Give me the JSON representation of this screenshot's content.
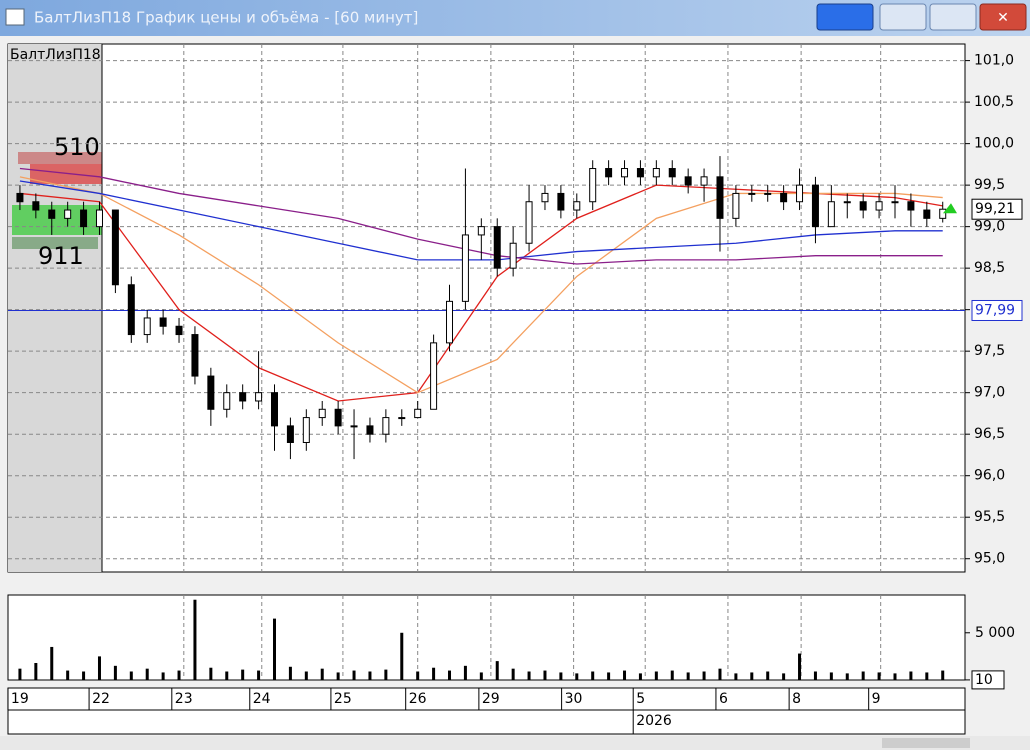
{
  "window_title": "БалтЛизП18 График цены и объёма - [60 минут]",
  "chart_data": {
    "type": "candlestick",
    "legend_label": "БалтЛизП18",
    "profile": {
      "top_label": "510",
      "bottom_label": "911"
    },
    "x": [
      0,
      1,
      2,
      3,
      4,
      5,
      6,
      7,
      8,
      9,
      10,
      11,
      12,
      13,
      14,
      15,
      16,
      17,
      18,
      19,
      20,
      21,
      22,
      23,
      24,
      25,
      26,
      27,
      28,
      29,
      30,
      31,
      32,
      33,
      34,
      35,
      36,
      37,
      38,
      39,
      40,
      41,
      42,
      43,
      44,
      45,
      46,
      47,
      48,
      49,
      50,
      51,
      52,
      53,
      54,
      55,
      56,
      57,
      58
    ],
    "open": [
      99.4,
      99.3,
      99.2,
      99.1,
      99.2,
      99.0,
      99.2,
      98.3,
      97.7,
      97.9,
      97.8,
      97.7,
      97.2,
      96.8,
      97.0,
      96.9,
      97.0,
      96.6,
      96.4,
      96.7,
      96.8,
      96.6,
      96.6,
      96.5,
      96.7,
      96.7,
      96.8,
      97.6,
      98.1,
      98.9,
      99.0,
      98.5,
      98.8,
      99.3,
      99.4,
      99.2,
      99.3,
      99.7,
      99.6,
      99.7,
      99.6,
      99.7,
      99.6,
      99.5,
      99.6,
      99.1,
      99.4,
      99.4,
      99.4,
      99.3,
      99.5,
      99.0,
      99.3,
      99.3,
      99.2,
      99.3,
      99.3,
      99.2,
      99.1
    ],
    "high": [
      99.5,
      99.4,
      99.3,
      99.3,
      99.3,
      99.3,
      99.2,
      98.4,
      98.0,
      98.0,
      97.9,
      97.8,
      97.3,
      97.1,
      97.1,
      97.5,
      97.1,
      96.7,
      96.8,
      96.9,
      96.9,
      96.8,
      96.7,
      96.8,
      96.8,
      96.9,
      97.7,
      98.3,
      99.7,
      99.1,
      99.1,
      99.0,
      99.5,
      99.5,
      99.5,
      99.4,
      99.8,
      99.8,
      99.8,
      99.8,
      99.8,
      99.8,
      99.7,
      99.7,
      99.85,
      99.5,
      99.5,
      99.5,
      99.5,
      99.7,
      99.6,
      99.5,
      99.4,
      99.4,
      99.4,
      99.5,
      99.4,
      99.3,
      99.3
    ],
    "low": [
      99.2,
      99.1,
      98.9,
      99.0,
      98.9,
      98.9,
      98.2,
      97.6,
      97.6,
      97.7,
      97.6,
      97.1,
      96.6,
      96.7,
      96.8,
      96.8,
      96.3,
      96.2,
      96.3,
      96.6,
      96.5,
      96.2,
      96.4,
      96.4,
      96.6,
      96.7,
      96.8,
      97.5,
      98.0,
      98.6,
      98.4,
      98.4,
      98.7,
      99.2,
      99.1,
      99.1,
      99.2,
      99.5,
      99.5,
      99.5,
      99.5,
      99.5,
      99.4,
      99.3,
      98.7,
      99.0,
      99.3,
      99.3,
      99.2,
      99.2,
      98.8,
      99.0,
      99.1,
      99.1,
      99.1,
      99.1,
      99.0,
      99.0,
      99.05
    ],
    "close": [
      99.3,
      99.2,
      99.1,
      99.2,
      99.0,
      99.2,
      98.3,
      97.7,
      97.9,
      97.8,
      97.7,
      97.2,
      96.8,
      97.0,
      96.9,
      97.0,
      96.6,
      96.4,
      96.7,
      96.8,
      96.6,
      96.6,
      96.5,
      96.7,
      96.7,
      96.8,
      97.6,
      98.1,
      98.9,
      99.0,
      98.5,
      98.8,
      99.3,
      99.4,
      99.2,
      99.3,
      99.7,
      99.6,
      99.7,
      99.6,
      99.7,
      99.6,
      99.5,
      99.6,
      99.1,
      99.4,
      99.4,
      99.4,
      99.3,
      99.5,
      99.0,
      99.3,
      99.3,
      99.2,
      99.3,
      99.3,
      99.2,
      99.1,
      99.21
    ],
    "series": [
      {
        "color": "#e0201c",
        "x": [
          0,
          5,
          10,
          15,
          20,
          25,
          30,
          35,
          40,
          45,
          50,
          55,
          58
        ],
        "values": [
          99.4,
          99.3,
          98.0,
          97.3,
          96.9,
          97.0,
          98.4,
          99.1,
          99.5,
          99.45,
          99.4,
          99.35,
          99.25
        ]
      },
      {
        "color": "#f4a060",
        "x": [
          0,
          5,
          10,
          15,
          20,
          25,
          30,
          35,
          40,
          45,
          50,
          55,
          58
        ],
        "values": [
          99.6,
          99.4,
          98.9,
          98.3,
          97.6,
          97.0,
          97.4,
          98.4,
          99.1,
          99.4,
          99.4,
          99.4,
          99.35
        ]
      },
      {
        "color": "#2030d0",
        "x": [
          0,
          5,
          10,
          15,
          20,
          25,
          30,
          35,
          40,
          45,
          50,
          55,
          58
        ],
        "values": [
          99.55,
          99.4,
          99.2,
          99.0,
          98.8,
          98.6,
          98.6,
          98.7,
          98.75,
          98.8,
          98.9,
          98.95,
          98.95
        ]
      },
      {
        "color": "#8a1f8a",
        "x": [
          0,
          5,
          10,
          15,
          20,
          25,
          30,
          35,
          40,
          45,
          50,
          55,
          58
        ],
        "values": [
          99.7,
          99.6,
          99.4,
          99.25,
          99.1,
          98.85,
          98.65,
          98.55,
          98.6,
          98.6,
          98.65,
          98.65,
          98.65
        ]
      }
    ],
    "last_price": {
      "value": 99.21,
      "label": "99,21"
    },
    "level": {
      "value": 97.99,
      "label": "97,99",
      "color": "#2030d0"
    },
    "xlim": [
      -0.75,
      59.4
    ],
    "xticks": [
      {
        "value": 0,
        "label": "19"
      },
      {
        "value": 5.1,
        "label": "22"
      },
      {
        "value": 10.3,
        "label": "23"
      },
      {
        "value": 15.2,
        "label": "24"
      },
      {
        "value": 20.3,
        "label": "25"
      },
      {
        "value": 25,
        "label": "26"
      },
      {
        "value": 29.6,
        "label": "29"
      },
      {
        "value": 34.8,
        "label": "30"
      },
      {
        "value": 39.3,
        "label": "5"
      },
      {
        "value": 44.5,
        "label": "6"
      },
      {
        "value": 49.1,
        "label": "8"
      },
      {
        "value": 54.1,
        "label": "9"
      }
    ],
    "year_label": {
      "value": 39.3,
      "label": "2026"
    },
    "ylim": [
      94.84,
      101.2
    ],
    "yticks": [
      {
        "value": 101,
        "label": "101,0"
      },
      {
        "value": 100.5,
        "label": "100,5"
      },
      {
        "value": 100,
        "label": "100,0"
      },
      {
        "value": 99.5,
        "label": "99,5"
      },
      {
        "value": 99,
        "label": "99,0"
      },
      {
        "value": 98.5,
        "label": "98,5"
      },
      {
        "value": 98,
        "label": "98,0"
      },
      {
        "value": 97.5,
        "label": "97,5"
      },
      {
        "value": 97,
        "label": "97,0"
      },
      {
        "value": 96.5,
        "label": "96,5"
      },
      {
        "value": 96,
        "label": "96,0"
      },
      {
        "value": 95.5,
        "label": "95,5"
      },
      {
        "value": 95,
        "label": "95,0"
      }
    ],
    "grid": true,
    "volume": {
      "ylim": [
        0,
        9000
      ],
      "yticks": [
        {
          "value": 5000,
          "label": "5 000"
        },
        10
      ],
      "values": [
        1200,
        1800,
        3500,
        1000,
        900,
        2500,
        1500,
        900,
        1200,
        800,
        1000,
        8500,
        1300,
        900,
        1100,
        1000,
        6500,
        1400,
        900,
        1200,
        800,
        1000,
        900,
        1100,
        5000,
        900,
        1300,
        1000,
        1500,
        800,
        2000,
        1200,
        900,
        1000,
        800,
        700,
        900,
        800,
        1000,
        700,
        900,
        1000,
        800,
        900,
        1200,
        700,
        800,
        900,
        700,
        2800,
        900,
        800,
        700,
        900,
        800,
        700,
        900,
        800,
        1000
      ]
    }
  }
}
